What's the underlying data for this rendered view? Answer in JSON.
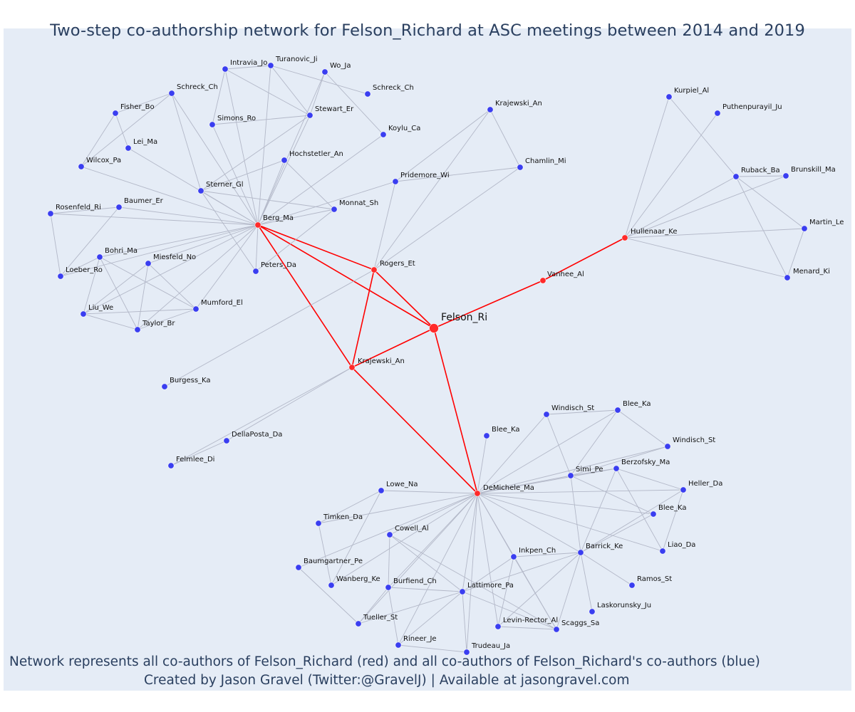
{
  "title": "Two-step co-authorship network for Felson_Richard at ASC meetings between 2014 and 2019",
  "footer": {
    "line1": "Network represents all co-authors of Felson_Richard (red) and all co-authors of Felson_Richard's co-authors (blue)",
    "line2": "Created by Jason Gravel (Twitter:@GravelJ) | Available at jasongravel.com"
  },
  "colors": {
    "background": "#e5ecf6",
    "text": "#2a3f5f",
    "focal_edge": "#ff0000",
    "other_edge": "#b3b8c8",
    "red_node": "#ff2a2a",
    "blue_node": "#3a3ef0"
  },
  "nodes": [
    {
      "id": "felson",
      "label": "Felson_Ri",
      "group": "focal"
    },
    {
      "id": "berg",
      "label": "Berg_Ma",
      "group": "red"
    },
    {
      "id": "rogers",
      "label": "Rogers_Et",
      "group": "red"
    },
    {
      "id": "vanhee",
      "label": "Vanhee_Al",
      "group": "red"
    },
    {
      "id": "hullenaar",
      "label": "Hullenaar_Ke",
      "group": "red"
    },
    {
      "id": "krajewski_r",
      "label": "Krajewski_An",
      "group": "red"
    },
    {
      "id": "demichele",
      "label": "DeMichele_Ma",
      "group": "red"
    },
    {
      "id": "intravia",
      "label": "Intravia_Jo",
      "group": "blue"
    },
    {
      "id": "turanovic",
      "label": "Turanovic_Ji",
      "group": "blue"
    },
    {
      "id": "wo",
      "label": "Wo_Ja",
      "group": "blue"
    },
    {
      "id": "schreck1",
      "label": "Schreck_Ch",
      "group": "blue"
    },
    {
      "id": "schreck2",
      "label": "Schreck_Ch",
      "group": "blue"
    },
    {
      "id": "fisher",
      "label": "Fisher_Bo",
      "group": "blue"
    },
    {
      "id": "simons",
      "label": "Simons_Ro",
      "group": "blue"
    },
    {
      "id": "stewart",
      "label": "Stewart_Er",
      "group": "blue"
    },
    {
      "id": "koylu",
      "label": "Koylu_Ca",
      "group": "blue"
    },
    {
      "id": "lei",
      "label": "Lei_Ma",
      "group": "blue"
    },
    {
      "id": "wilcox",
      "label": "Wilcox_Pa",
      "group": "blue"
    },
    {
      "id": "hochstetler",
      "label": "Hochstetler_An",
      "group": "blue"
    },
    {
      "id": "sterner",
      "label": "Sterner_Gl",
      "group": "blue"
    },
    {
      "id": "rosenfeld",
      "label": "Rosenfeld_Ri",
      "group": "blue"
    },
    {
      "id": "baumer",
      "label": "Baumer_Er",
      "group": "blue"
    },
    {
      "id": "monnat",
      "label": "Monnat_Sh",
      "group": "blue"
    },
    {
      "id": "bohri",
      "label": "Bohri_Ma",
      "group": "blue"
    },
    {
      "id": "miesfeld",
      "label": "Miesfeld_No",
      "group": "blue"
    },
    {
      "id": "loeber",
      "label": "Loeber_Ro",
      "group": "blue"
    },
    {
      "id": "peters",
      "label": "Peters_Da",
      "group": "blue"
    },
    {
      "id": "liu",
      "label": "Liu_We",
      "group": "blue"
    },
    {
      "id": "taylor",
      "label": "Taylor_Br",
      "group": "blue"
    },
    {
      "id": "mumford",
      "label": "Mumford_El",
      "group": "blue"
    },
    {
      "id": "krajewski_b",
      "label": "Krajewski_An",
      "group": "blue"
    },
    {
      "id": "chamlin",
      "label": "Chamlin_Mi",
      "group": "blue"
    },
    {
      "id": "pridemore",
      "label": "Pridemore_Wi",
      "group": "blue"
    },
    {
      "id": "burgess",
      "label": "Burgess_Ka",
      "group": "blue"
    },
    {
      "id": "dellaposta",
      "label": "DellaPosta_Da",
      "group": "blue"
    },
    {
      "id": "felmlee",
      "label": "Felmlee_Di",
      "group": "blue"
    },
    {
      "id": "kurpiel",
      "label": "Kurpiel_Al",
      "group": "blue"
    },
    {
      "id": "puthenpurayil",
      "label": "Puthenpurayil_Ju",
      "group": "blue"
    },
    {
      "id": "ruback",
      "label": "Ruback_Ba",
      "group": "blue"
    },
    {
      "id": "brunskill",
      "label": "Brunskill_Ma",
      "group": "blue"
    },
    {
      "id": "martin",
      "label": "Martin_Le",
      "group": "blue"
    },
    {
      "id": "menard",
      "label": "Menard_Ki",
      "group": "blue"
    },
    {
      "id": "windisch1",
      "label": "Windisch_St",
      "group": "blue"
    },
    {
      "id": "blee1",
      "label": "Blee_Ka",
      "group": "blue"
    },
    {
      "id": "blee2",
      "label": "Blee_Ka",
      "group": "blue"
    },
    {
      "id": "windisch2",
      "label": "Windisch_St",
      "group": "blue"
    },
    {
      "id": "simi",
      "label": "Simi_Pe",
      "group": "blue"
    },
    {
      "id": "berzofsky",
      "label": "Berzofsky_Ma",
      "group": "blue"
    },
    {
      "id": "heller",
      "label": "Heller_Da",
      "group": "blue"
    },
    {
      "id": "lowe",
      "label": "Lowe_Na",
      "group": "blue"
    },
    {
      "id": "blee3",
      "label": "Blee_Ka",
      "group": "blue"
    },
    {
      "id": "timken",
      "label": "Timken_Da",
      "group": "blue"
    },
    {
      "id": "cowell",
      "label": "Cowell_Al",
      "group": "blue"
    },
    {
      "id": "liao",
      "label": "Liao_Da",
      "group": "blue"
    },
    {
      "id": "inkpen",
      "label": "Inkpen_Ch",
      "group": "blue"
    },
    {
      "id": "barrick",
      "label": "Barrick_Ke",
      "group": "blue"
    },
    {
      "id": "baumgartner",
      "label": "Baumgartner_Pe",
      "group": "blue"
    },
    {
      "id": "wanberg",
      "label": "Wanberg_Ke",
      "group": "blue"
    },
    {
      "id": "burfiend",
      "label": "Burfiend_Ch",
      "group": "blue"
    },
    {
      "id": "lattimore",
      "label": "Lattimore_Pa",
      "group": "blue"
    },
    {
      "id": "ramos",
      "label": "Ramos_St",
      "group": "blue"
    },
    {
      "id": "laskorunsky",
      "label": "Laskorunsky_Ju",
      "group": "blue"
    },
    {
      "id": "levinrector",
      "label": "Levin-Rector_Al",
      "group": "blue"
    },
    {
      "id": "scaggs",
      "label": "Scaggs_Sa",
      "group": "blue"
    },
    {
      "id": "tueller",
      "label": "Tueller_St",
      "group": "blue"
    },
    {
      "id": "rineer",
      "label": "Rineer_Je",
      "group": "blue"
    },
    {
      "id": "trudeau",
      "label": "Trudeau_Ja",
      "group": "blue"
    }
  ],
  "edges": [
    [
      "felson",
      "berg"
    ],
    [
      "felson",
      "rogers"
    ],
    [
      "felson",
      "vanhee"
    ],
    [
      "felson",
      "krajewski_r"
    ],
    [
      "felson",
      "demichele"
    ],
    [
      "vanhee",
      "hullenaar"
    ],
    [
      "berg",
      "rogers"
    ],
    [
      "berg",
      "krajewski_r"
    ],
    [
      "rogers",
      "krajewski_r"
    ],
    [
      "krajewski_r",
      "demichele"
    ],
    [
      "berg",
      "intravia"
    ],
    [
      "berg",
      "turanovic"
    ],
    [
      "berg",
      "wo"
    ],
    [
      "berg",
      "schreck1"
    ],
    [
      "berg",
      "simons"
    ],
    [
      "berg",
      "stewart"
    ],
    [
      "berg",
      "koylu"
    ],
    [
      "berg",
      "lei"
    ],
    [
      "berg",
      "wilcox"
    ],
    [
      "berg",
      "hochstetler"
    ],
    [
      "berg",
      "sterner"
    ],
    [
      "berg",
      "rosenfeld"
    ],
    [
      "berg",
      "baumer"
    ],
    [
      "berg",
      "monnat"
    ],
    [
      "berg",
      "bohri"
    ],
    [
      "berg",
      "miesfeld"
    ],
    [
      "berg",
      "peters"
    ],
    [
      "berg",
      "liu"
    ],
    [
      "berg",
      "taylor"
    ],
    [
      "berg",
      "mumford"
    ],
    [
      "berg",
      "loeber"
    ],
    [
      "intravia",
      "turanovic"
    ],
    [
      "intravia",
      "stewart"
    ],
    [
      "intravia",
      "simons"
    ],
    [
      "turanovic",
      "stewart"
    ],
    [
      "turanovic",
      "schreck2"
    ],
    [
      "wo",
      "koylu"
    ],
    [
      "wo",
      "stewart"
    ],
    [
      "schreck1",
      "fisher"
    ],
    [
      "schreck1",
      "wilcox"
    ],
    [
      "schreck1",
      "sterner"
    ],
    [
      "fisher",
      "wilcox"
    ],
    [
      "fisher",
      "lei"
    ],
    [
      "simons",
      "stewart"
    ],
    [
      "stewart",
      "sterner"
    ],
    [
      "hochstetler",
      "sterner"
    ],
    [
      "hochstetler",
      "monnat"
    ],
    [
      "sterner",
      "monnat"
    ],
    [
      "sterner",
      "peters"
    ],
    [
      "rosenfeld",
      "baumer"
    ],
    [
      "rosenfeld",
      "loeber"
    ],
    [
      "baumer",
      "loeber"
    ],
    [
      "bohri",
      "liu"
    ],
    [
      "bohri",
      "taylor"
    ],
    [
      "bohri",
      "mumford"
    ],
    [
      "bohri",
      "loeber"
    ],
    [
      "miesfeld",
      "liu"
    ],
    [
      "miesfeld",
      "taylor"
    ],
    [
      "miesfeld",
      "mumford"
    ],
    [
      "liu",
      "taylor"
    ],
    [
      "liu",
      "mumford"
    ],
    [
      "taylor",
      "mumford"
    ],
    [
      "monnat",
      "peters"
    ],
    [
      "rogers",
      "pridemore"
    ],
    [
      "rogers",
      "krajewski_b"
    ],
    [
      "rogers",
      "chamlin"
    ],
    [
      "rogers",
      "burgess"
    ],
    [
      "pridemore",
      "chamlin"
    ],
    [
      "pridemore",
      "krajewski_b"
    ],
    [
      "krajewski_b",
      "chamlin"
    ],
    [
      "berg",
      "pridemore"
    ],
    [
      "krajewski_r",
      "dellaposta"
    ],
    [
      "krajewski_r",
      "felmlee"
    ],
    [
      "dellaposta",
      "felmlee"
    ],
    [
      "hullenaar",
      "kurpiel"
    ],
    [
      "hullenaar",
      "puthenpurayil"
    ],
    [
      "hullenaar",
      "ruback"
    ],
    [
      "hullenaar",
      "brunskill"
    ],
    [
      "hullenaar",
      "martin"
    ],
    [
      "hullenaar",
      "menard"
    ],
    [
      "kurpiel",
      "ruback"
    ],
    [
      "ruback",
      "brunskill"
    ],
    [
      "ruback",
      "martin"
    ],
    [
      "ruback",
      "menard"
    ],
    [
      "martin",
      "menard"
    ],
    [
      "demichele",
      "windisch1"
    ],
    [
      "demichele",
      "blee1"
    ],
    [
      "demichele",
      "blee2"
    ],
    [
      "demichele",
      "windisch2"
    ],
    [
      "demichele",
      "simi"
    ],
    [
      "demichele",
      "berzofsky"
    ],
    [
      "demichele",
      "heller"
    ],
    [
      "demichele",
      "lowe"
    ],
    [
      "demichele",
      "blee3"
    ],
    [
      "demichele",
      "timken"
    ],
    [
      "demichele",
      "cowell"
    ],
    [
      "demichele",
      "liao"
    ],
    [
      "demichele",
      "inkpen"
    ],
    [
      "demichele",
      "barrick"
    ],
    [
      "demichele",
      "baumgartner"
    ],
    [
      "demichele",
      "wanberg"
    ],
    [
      "demichele",
      "burfiend"
    ],
    [
      "demichele",
      "lattimore"
    ],
    [
      "demichele",
      "levinrector"
    ],
    [
      "demichele",
      "scaggs"
    ],
    [
      "demichele",
      "tueller"
    ],
    [
      "demichele",
      "rineer"
    ],
    [
      "demichele",
      "trudeau"
    ],
    [
      "windisch1",
      "blee1"
    ],
    [
      "windisch1",
      "simi"
    ],
    [
      "blee1",
      "windisch2"
    ],
    [
      "blee1",
      "simi"
    ],
    [
      "simi",
      "windisch2"
    ],
    [
      "simi",
      "berzofsky"
    ],
    [
      "simi",
      "barrick"
    ],
    [
      "simi",
      "blee3"
    ],
    [
      "berzofsky",
      "heller"
    ],
    [
      "berzofsky",
      "liao"
    ],
    [
      "berzofsky",
      "barrick"
    ],
    [
      "heller",
      "barrick"
    ],
    [
      "heller",
      "liao"
    ],
    [
      "blee3",
      "barrick"
    ],
    [
      "barrick",
      "ramos"
    ],
    [
      "barrick",
      "laskorunsky"
    ],
    [
      "barrick",
      "scaggs"
    ],
    [
      "barrick",
      "levinrector"
    ],
    [
      "barrick",
      "inkpen"
    ],
    [
      "barrick",
      "lattimore"
    ],
    [
      "inkpen",
      "scaggs"
    ],
    [
      "inkpen",
      "levinrector"
    ],
    [
      "inkpen",
      "lattimore"
    ],
    [
      "lowe",
      "timken"
    ],
    [
      "lowe",
      "wanberg"
    ],
    [
      "timken",
      "wanberg"
    ],
    [
      "cowell",
      "lattimore"
    ],
    [
      "cowell",
      "burfiend"
    ],
    [
      "baumgartner",
      "tueller"
    ],
    [
      "burfiend",
      "lattimore"
    ],
    [
      "burfiend",
      "rineer"
    ],
    [
      "burfiend",
      "tueller"
    ],
    [
      "lattimore",
      "rineer"
    ],
    [
      "lattimore",
      "trudeau"
    ],
    [
      "lattimore",
      "scaggs"
    ],
    [
      "lattimore",
      "tueller"
    ],
    [
      "rineer",
      "trudeau"
    ],
    [
      "levinrector",
      "scaggs"
    ],
    [
      "cowell",
      "scaggs"
    ]
  ]
}
